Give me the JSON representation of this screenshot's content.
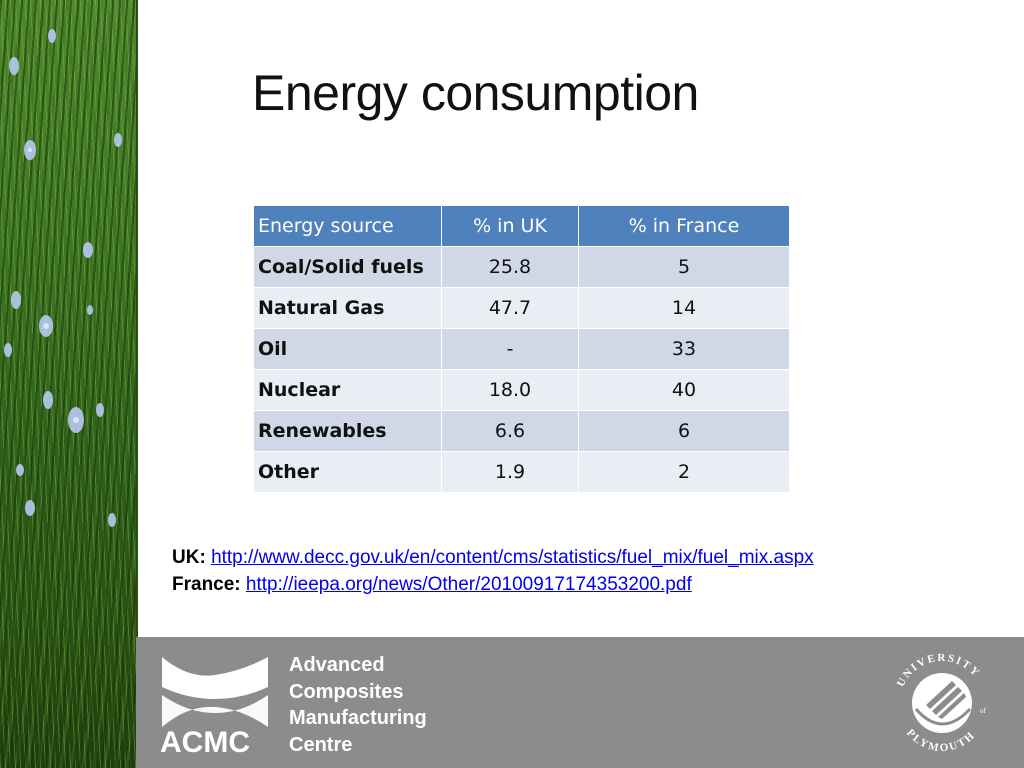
{
  "slide": {
    "title": "Energy consumption"
  },
  "table": {
    "headers": [
      "Energy source",
      "% in UK",
      "% in France"
    ],
    "rows": [
      {
        "source": "Coal/Solid fuels",
        "uk": "25.8",
        "france": "5"
      },
      {
        "source": "Natural Gas",
        "uk": "47.7",
        "france": "14"
      },
      {
        "source": "Oil",
        "uk": "-",
        "france": "33"
      },
      {
        "source": "Nuclear",
        "uk": "18.0",
        "france": "40"
      },
      {
        "source": "Renewables",
        "uk": "6.6",
        "france": "6"
      },
      {
        "source": "Other",
        "uk": "1.9",
        "france": "2"
      }
    ]
  },
  "references": {
    "uk_label": "UK:",
    "uk_link": "http://www.decc.gov.uk/en/content/cms/statistics/fuel_mix/fuel_mix.aspx",
    "france_label": "France:",
    "france_link": "http://ieepa.org/news/Other/20100917174353200.pdf"
  },
  "footer": {
    "acmc_abbrev": "ACMC",
    "acmc_name_lines": [
      "Advanced",
      "Composites",
      "Manufacturing",
      "Centre"
    ],
    "university_top": "UNIVERSITY",
    "university_of": "of",
    "university_bottom": "PLYMOUTH"
  },
  "colors": {
    "table_header": "#4f81bd",
    "row_odd": "#d0d8e8",
    "row_even": "#e9edf4",
    "footer_band": "#8c8c8c",
    "link": "#0000ee"
  },
  "icons": {
    "left_strip": "grass-flowers-image",
    "acmc_mark": "acmc-logo",
    "university_seal": "university-of-plymouth-seal"
  }
}
